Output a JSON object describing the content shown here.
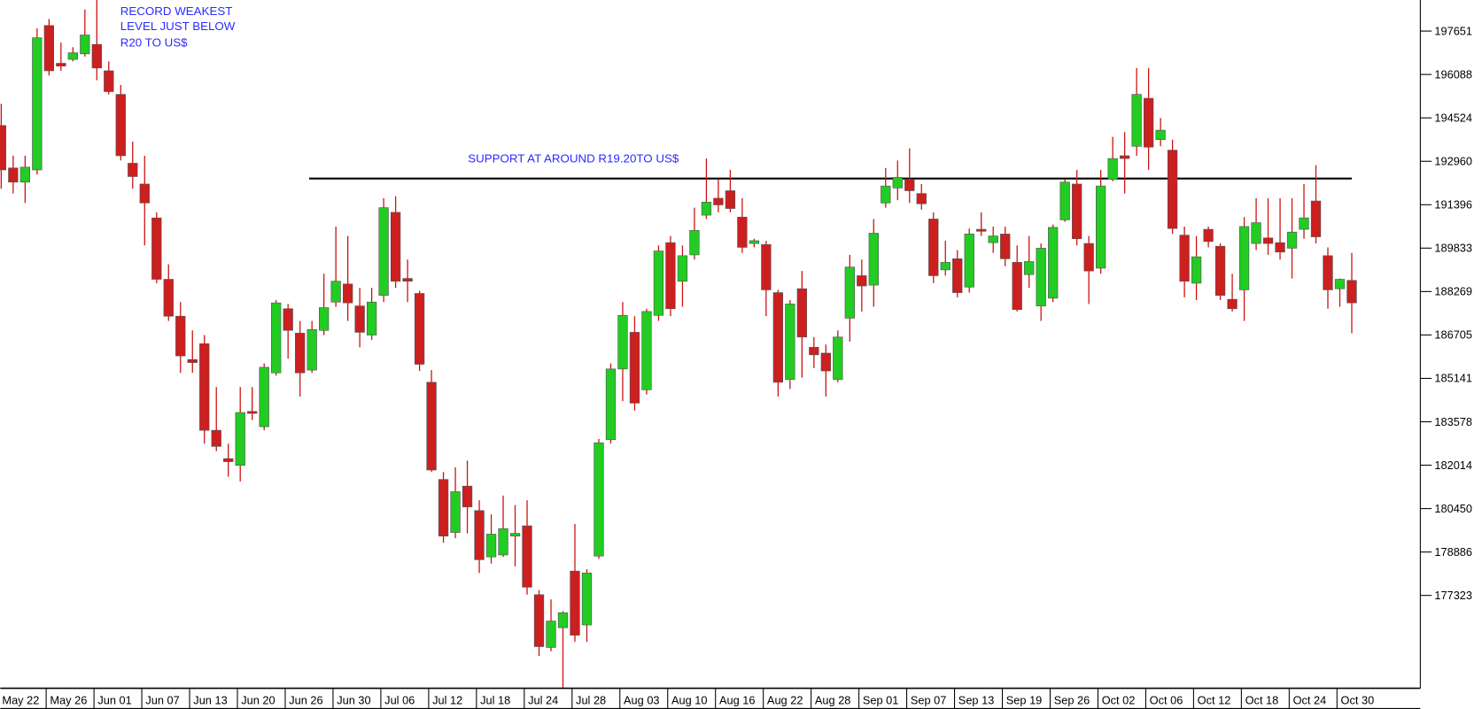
{
  "chart_data": {
    "type": "candlestick",
    "annotation_record": [
      "RECORD WEAKEST",
      "LEVEL JUST BELOW",
      "R20 TO US$"
    ],
    "annotation_support": "SUPPORT AT AROUND R19.20TO US$",
    "support_line": {
      "value": 192340,
      "start": 26,
      "end": 113
    },
    "up_color": "#22cc22",
    "down_color": "#cc1f1f",
    "wick_color": "#cc1111",
    "ylim": [
      173980,
      198770
    ],
    "yticks": [
      177323,
      178886,
      180450,
      182014,
      183578,
      185141,
      186705,
      188269,
      189833,
      191396,
      192960,
      194524,
      196088,
      197651
    ],
    "xlim": [
      0,
      113
    ],
    "xticks": [
      {
        "value": 0,
        "label": "May 22"
      },
      {
        "value": 4,
        "label": "May 26"
      },
      {
        "value": 8,
        "label": "Jun 01"
      },
      {
        "value": 12,
        "label": "Jun 07"
      },
      {
        "value": 16,
        "label": "Jun 13"
      },
      {
        "value": 20,
        "label": "Jun 20"
      },
      {
        "value": 24,
        "label": "Jun 26"
      },
      {
        "value": 28,
        "label": "Jun 30"
      },
      {
        "value": 32,
        "label": "Jul 06"
      },
      {
        "value": 36,
        "label": "Jul 12"
      },
      {
        "value": 40,
        "label": "Jul 18"
      },
      {
        "value": 44,
        "label": "Jul 24"
      },
      {
        "value": 48,
        "label": "Jul 28"
      },
      {
        "value": 52,
        "label": "Aug 03"
      },
      {
        "value": 56,
        "label": "Aug 10"
      },
      {
        "value": 60,
        "label": "Aug 16"
      },
      {
        "value": 64,
        "label": "Aug 22"
      },
      {
        "value": 68,
        "label": "Aug 28"
      },
      {
        "value": 72,
        "label": "Sep 01"
      },
      {
        "value": 76,
        "label": "Sep 07"
      },
      {
        "value": 80,
        "label": "Sep 13"
      },
      {
        "value": 84,
        "label": "Sep 19"
      },
      {
        "value": 88,
        "label": "Sep 26"
      },
      {
        "value": 92,
        "label": "Oct 02"
      },
      {
        "value": 96,
        "label": "Oct 06"
      },
      {
        "value": 100,
        "label": "Oct 12"
      },
      {
        "value": 104,
        "label": "Oct 18"
      },
      {
        "value": 108,
        "label": "Oct 24"
      },
      {
        "value": 112,
        "label": "Oct 30"
      }
    ],
    "open": [
      194250,
      192720,
      192210,
      192650,
      197850,
      196490,
      196630,
      196830,
      197170,
      196220,
      195370,
      192890,
      192140,
      190920,
      188710,
      187380,
      185820,
      186390,
      183270,
      182250,
      182010,
      183950,
      183400,
      185340,
      187650,
      186770,
      185440,
      186870,
      187890,
      188540,
      187750,
      186700,
      188130,
      191120,
      188740,
      188200,
      185000,
      181500,
      179590,
      181260,
      180380,
      178710,
      178780,
      179460,
      179830,
      177350,
      175450,
      176160,
      178200,
      176260,
      178740,
      182930,
      185480,
      186800,
      184730,
      187410,
      190030,
      188640,
      189590,
      191020,
      191630,
      191900,
      190950,
      190000,
      189960,
      188230,
      185100,
      188370,
      186260,
      186050,
      185100,
      187310,
      188840,
      188500,
      191460,
      192000,
      192310,
      191800,
      190880,
      189050,
      189450,
      188430,
      190510,
      190030,
      190340,
      189320,
      188880,
      187750,
      188030,
      190850,
      192140,
      190000,
      189110,
      192310,
      193160,
      193500,
      195230,
      193740,
      193360,
      190300,
      188570,
      190510,
      189900,
      187990,
      188330,
      190000,
      190200,
      190030,
      189830,
      190510,
      191530,
      189560,
      188370,
      188670
    ],
    "high": [
      195030,
      193160,
      193160,
      197750,
      198090,
      197240,
      197070,
      198430,
      198770,
      196560,
      195710,
      193670,
      193160,
      191120,
      189250,
      187890,
      186870,
      186700,
      184830,
      182790,
      184830,
      184830,
      185680,
      187960,
      187820,
      187210,
      187210,
      188910,
      190610,
      190270,
      188400,
      188400,
      191630,
      191700,
      189420,
      188300,
      185440,
      181770,
      181940,
      182180,
      180750,
      180240,
      180920,
      180580,
      180750,
      177520,
      177180,
      176760,
      179900,
      178270,
      182960,
      185680,
      187890,
      187380,
      187650,
      189930,
      190270,
      189930,
      191290,
      193060,
      192310,
      192650,
      191630,
      190170,
      190100,
      188330,
      187960,
      189010,
      186630,
      186360,
      186870,
      189590,
      189420,
      190880,
      192720,
      192990,
      193430,
      192140,
      191120,
      190100,
      189760,
      190540,
      191120,
      190610,
      190610,
      189930,
      190270,
      190000,
      190680,
      192310,
      192650,
      190270,
      192650,
      193840,
      194010,
      196320,
      196320,
      194520,
      193740,
      190610,
      190270,
      190610,
      190000,
      188910,
      190950,
      191630,
      191630,
      191630,
      191630,
      192140,
      192820,
      189860,
      188740,
      189660
    ],
    "low": [
      191970,
      191800,
      191460,
      192480,
      196050,
      196220,
      196560,
      196730,
      195880,
      195370,
      192990,
      191970,
      189930,
      188570,
      187210,
      185340,
      185340,
      182790,
      182520,
      181600,
      181430,
      183640,
      183270,
      185240,
      185850,
      184490,
      185340,
      186700,
      187720,
      187210,
      186260,
      186530,
      187890,
      188400,
      187890,
      185410,
      181770,
      179220,
      179390,
      179560,
      178130,
      178470,
      178710,
      178370,
      177350,
      175140,
      175310,
      174000,
      175650,
      175650,
      178640,
      182790,
      184320,
      183980,
      184560,
      187210,
      187380,
      187720,
      189420,
      190880,
      191120,
      191120,
      189660,
      189860,
      187380,
      184490,
      184760,
      185170,
      185510,
      184490,
      185000,
      186460,
      187550,
      187720,
      191290,
      191560,
      191460,
      191220,
      188570,
      188840,
      188060,
      188230,
      190270,
      189660,
      189180,
      187550,
      188400,
      187210,
      187890,
      190780,
      189930,
      187820,
      188910,
      192240,
      191800,
      193160,
      192650,
      193500,
      190340,
      188060,
      187960,
      189860,
      187960,
      187550,
      187210,
      189760,
      189590,
      189420,
      188740,
      190170,
      190000,
      187650,
      187720,
      186770
    ],
    "close": [
      192650,
      192210,
      192750,
      197410,
      196220,
      196390,
      196870,
      197510,
      196320,
      195470,
      193160,
      192410,
      191460,
      188710,
      187380,
      185950,
      185710,
      183270,
      182690,
      182140,
      183910,
      183880,
      185540,
      187860,
      186870,
      185340,
      186900,
      187690,
      188640,
      187860,
      186800,
      187890,
      191290,
      188640,
      188640,
      185650,
      181840,
      179460,
      181060,
      180510,
      178610,
      179530,
      179730,
      179560,
      177620,
      175480,
      176400,
      176700,
      175890,
      178130,
      182820,
      185480,
      187410,
      184250,
      187550,
      189730,
      187650,
      189560,
      190470,
      191490,
      191390,
      191260,
      189860,
      190100,
      188330,
      185000,
      187820,
      186630,
      185990,
      185410,
      186630,
      189150,
      188470,
      190370,
      192070,
      192380,
      191900,
      191430,
      188840,
      189320,
      188230,
      190340,
      190440,
      190270,
      189450,
      187620,
      189350,
      189830,
      190580,
      192210,
      190170,
      189010,
      192070,
      193060,
      193060,
      195370,
      193470,
      194080,
      190540,
      188640,
      189520,
      190070,
      188130,
      187650,
      190610,
      190750,
      190000,
      189690,
      190410,
      190920,
      190240,
      188330,
      188710,
      187860
    ]
  }
}
